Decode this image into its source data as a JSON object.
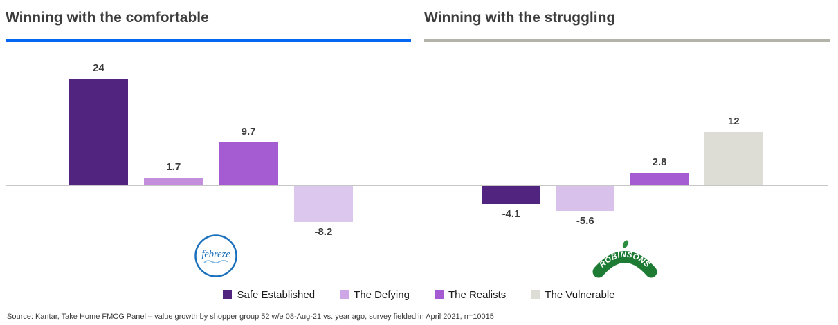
{
  "chart_data": [
    {
      "type": "bar",
      "title": "Winning with the comfortable",
      "accent_color": "#0566f2",
      "categories": [
        "Safe Established",
        "The Defying",
        "The Realists",
        "The Vulnerable"
      ],
      "values": [
        24,
        1.7,
        9.7,
        -8.2
      ],
      "data_labels": [
        "24",
        "1.7",
        "9.7",
        "-8.2"
      ],
      "bar_colors": [
        "#51257f",
        "#c38fdd",
        "#a55bd2",
        "#dcc7ee"
      ],
      "brand": "febreze",
      "xlabel": "",
      "ylabel": "",
      "ylim": [
        -10,
        26
      ],
      "grid": false,
      "legend_position": "bottom"
    },
    {
      "type": "bar",
      "title": "Winning with the struggling",
      "accent_color": "#b3b3aa",
      "categories": [
        "Safe Established",
        "The Defying",
        "The Realists",
        "The Vulnerable"
      ],
      "values": [
        -4.1,
        -5.6,
        2.8,
        12
      ],
      "data_labels": [
        "-4.1",
        "-5.6",
        "2.8",
        "12"
      ],
      "bar_colors": [
        "#51257f",
        "#d8c2ec",
        "#a55bd2",
        "#dddcd5"
      ],
      "brand": "ROBINSONS",
      "xlabel": "",
      "ylabel": "",
      "ylim": [
        -10,
        26
      ],
      "grid": false,
      "legend_position": "bottom"
    }
  ],
  "legend": [
    {
      "label": "Safe Established",
      "color": "#51257f"
    },
    {
      "label": "The Defying",
      "color": "#cda7e6"
    },
    {
      "label": "The Realists",
      "color": "#a55bd2"
    },
    {
      "label": "The Vulnerable",
      "color": "#dddcd5"
    }
  ],
  "source": "Source: Kantar, Take Home FMCG Panel – value growth by shopper group 52 w/e 08-Aug-21 vs. year ago, survey fielded in April 2021, n=10015"
}
